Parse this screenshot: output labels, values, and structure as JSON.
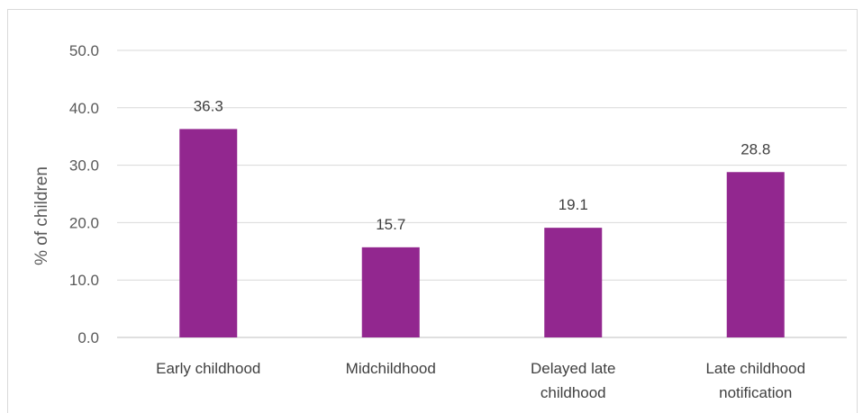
{
  "chart_data": {
    "type": "bar",
    "categories": [
      [
        "Early childhood"
      ],
      [
        "Midchildhood"
      ],
      [
        "Delayed late",
        "childhood"
      ],
      [
        "Late childhood",
        "notification"
      ]
    ],
    "values": [
      36.3,
      15.7,
      19.1,
      28.8
    ],
    "value_labels": [
      "36.3",
      "15.7",
      "19.1",
      "28.8"
    ],
    "ylabel": "% of children",
    "xlabel": "",
    "ylim": [
      0,
      50
    ],
    "yticks": [
      "0.0",
      "10.0",
      "20.0",
      "30.0",
      "40.0",
      "50.0"
    ],
    "ytick_values": [
      0,
      10,
      20,
      30,
      40,
      50
    ],
    "grid": true,
    "bar_color": "#92278f",
    "grid_color": "#d9d9d9"
  }
}
